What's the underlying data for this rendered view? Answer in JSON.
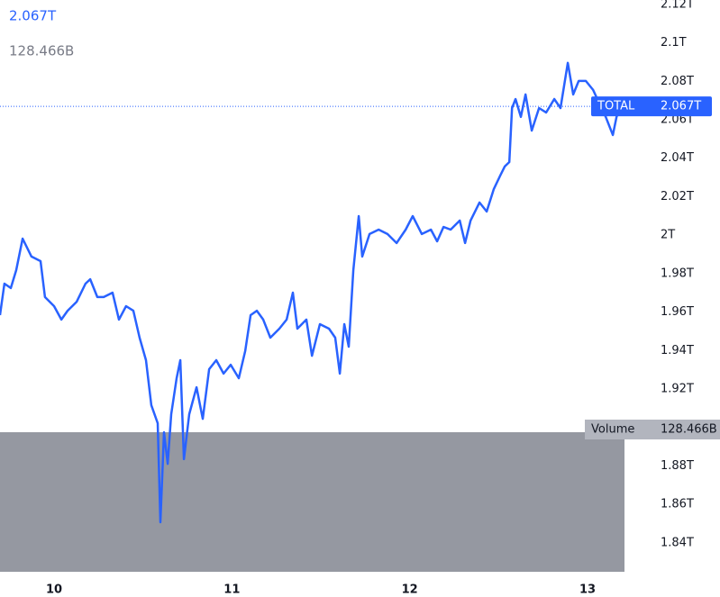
{
  "chart_data": {
    "type": "line",
    "x": [
      9.696,
      9.721,
      9.757,
      9.787,
      9.823,
      9.873,
      9.924,
      9.949,
      10.0,
      10.041,
      10.076,
      10.127,
      10.177,
      10.203,
      10.243,
      10.279,
      10.329,
      10.365,
      10.405,
      10.446,
      10.481,
      10.517,
      10.547,
      10.583,
      10.598,
      10.618,
      10.639,
      10.659,
      10.689,
      10.71,
      10.73,
      10.76,
      10.801,
      10.836,
      10.872,
      10.912,
      10.953,
      10.993,
      11.039,
      11.075,
      11.105,
      11.14,
      11.176,
      11.216,
      11.267,
      11.308,
      11.343,
      11.368,
      11.419,
      11.45,
      11.495,
      11.546,
      11.581,
      11.607,
      11.632,
      11.657,
      11.683,
      11.713,
      11.733,
      11.774,
      11.825,
      11.875,
      11.926,
      11.977,
      12.017,
      12.068,
      12.119,
      12.154,
      12.19,
      12.23,
      12.281,
      12.311,
      12.342,
      12.392,
      12.433,
      12.473,
      12.509,
      12.534,
      12.56,
      12.575,
      12.595,
      12.625,
      12.651,
      12.686,
      12.727,
      12.767,
      12.813,
      12.848,
      12.889,
      12.919,
      12.95,
      12.99,
      13.031,
      13.066,
      13.102,
      13.142,
      13.163,
      13.183
    ],
    "series": [
      {
        "name": "TOTAL",
        "color": "#2962ff",
        "values": [
          1.9584,
          1.9748,
          1.9725,
          1.9818,
          1.9982,
          1.9889,
          1.9865,
          1.9678,
          1.9631,
          1.9561,
          1.9607,
          1.9654,
          1.9748,
          1.9771,
          1.9678,
          1.9678,
          1.9701,
          1.9561,
          1.9631,
          1.9607,
          1.9467,
          1.935,
          1.9116,
          1.9022,
          1.8507,
          1.8975,
          1.8811,
          1.9069,
          1.9256,
          1.935,
          1.8835,
          1.9069,
          1.9209,
          1.9045,
          1.9303,
          1.935,
          1.928,
          1.9326,
          1.9256,
          1.9397,
          1.9584,
          1.9607,
          1.9561,
          1.9467,
          1.9514,
          1.9561,
          1.9701,
          1.9514,
          1.9561,
          1.9373,
          1.9537,
          1.9514,
          1.9467,
          1.928,
          1.9537,
          1.942,
          1.9818,
          2.0099,
          1.9889,
          2.0006,
          2.0029,
          2.0006,
          1.9959,
          2.0029,
          2.0099,
          2.0006,
          2.0029,
          1.9968,
          2.0043,
          2.0029,
          2.0076,
          1.9959,
          2.0076,
          2.017,
          2.0123,
          2.024,
          2.031,
          2.0357,
          2.038,
          2.0661,
          2.0708,
          2.0615,
          2.0732,
          2.0544,
          2.0661,
          2.0638,
          2.0708,
          2.0661,
          2.0896,
          2.0732,
          2.0802,
          2.0802,
          2.0755,
          2.0685,
          2.0615,
          2.0521,
          2.0615,
          2.0661
        ]
      }
    ],
    "last_value": {
      "value": 2.067,
      "label": "2.067T"
    },
    "volume": {
      "name": "Volume",
      "value": 128.466,
      "label": "128.466B"
    },
    "xlim": [
      9.696,
      13.319
    ],
    "xticks": [
      10,
      11,
      12,
      13
    ],
    "ylim": [
      1.8226,
      2.1223
    ],
    "yticks": [
      {
        "value": 2.12,
        "label": "2.12T"
      },
      {
        "value": 2.1,
        "label": "2.1T"
      },
      {
        "value": 2.08,
        "label": "2.08T"
      },
      {
        "value": 2.06,
        "label": "2.06T"
      },
      {
        "value": 2.04,
        "label": "2.04T"
      },
      {
        "value": 2.02,
        "label": "2.02T"
      },
      {
        "value": 2,
        "label": "2T"
      },
      {
        "value": 1.98,
        "label": "1.98T"
      },
      {
        "value": 1.96,
        "label": "1.96T"
      },
      {
        "value": 1.94,
        "label": "1.94T"
      },
      {
        "value": 1.92,
        "label": "1.92T"
      },
      {
        "value": 1.88,
        "label": "1.88T"
      },
      {
        "value": 1.86,
        "label": "1.86T"
      },
      {
        "value": 1.84,
        "label": "1.84T"
      }
    ]
  }
}
